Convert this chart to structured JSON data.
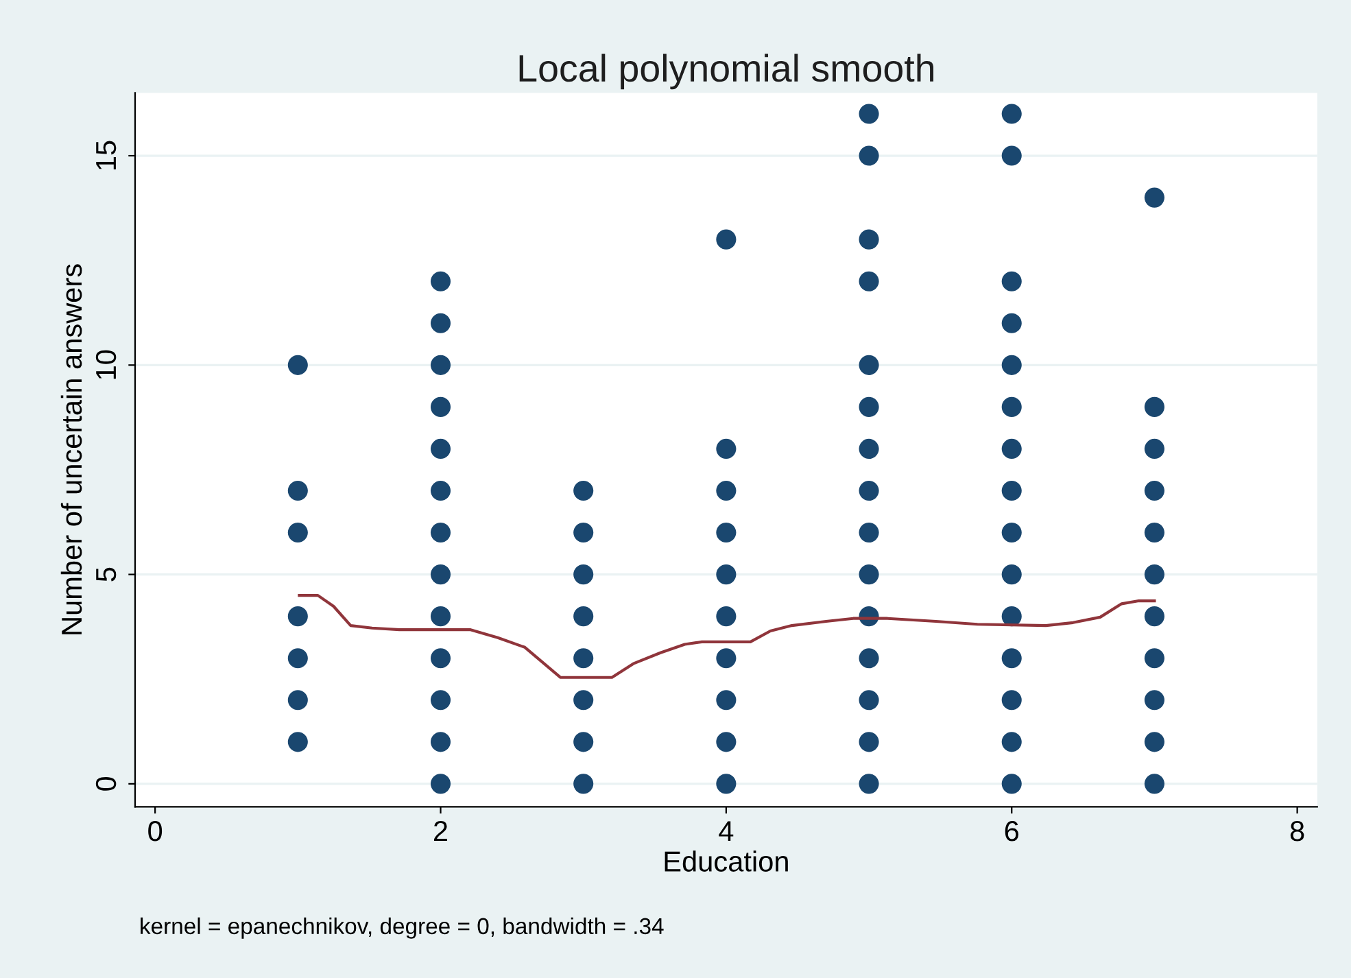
{
  "chart_data": {
    "type": "scatter",
    "title": "Local polynomial smooth",
    "xlabel": "Education",
    "ylabel": "Number of uncertain answers",
    "annotations": [
      "kernel = epanechnikov, degree = 0, bandwidth = .34"
    ],
    "xlim": [
      -0.14,
      8.14
    ],
    "ylim": [
      -0.55,
      16.5
    ],
    "xticks": [
      0,
      2,
      4,
      6,
      8
    ],
    "yticks": [
      0,
      5,
      10,
      15
    ],
    "grid": "y",
    "marker": "circle",
    "series": [
      {
        "color": "#1a476f",
        "x": [
          1,
          1,
          1,
          1,
          1,
          1,
          1,
          2,
          2,
          2,
          2,
          2,
          2,
          2,
          2,
          2,
          2,
          2,
          2,
          2,
          3,
          3,
          3,
          3,
          3,
          3,
          3,
          3,
          4,
          4,
          4,
          4,
          4,
          4,
          4,
          4,
          4,
          4,
          5,
          5,
          5,
          5,
          5,
          5,
          5,
          5,
          5,
          5,
          5,
          5,
          5,
          5,
          5,
          6,
          6,
          6,
          6,
          6,
          6,
          6,
          6,
          6,
          6,
          6,
          6,
          6,
          6,
          6,
          7,
          7,
          7,
          7,
          7,
          7,
          7,
          7,
          7,
          7,
          7
        ],
        "values": [
          1,
          2,
          3,
          4,
          6,
          7,
          10,
          0,
          1,
          2,
          3,
          4,
          5,
          6,
          7,
          8,
          9,
          10,
          11,
          12,
          0,
          1,
          2,
          3,
          4,
          5,
          6,
          7,
          0,
          1,
          2,
          3,
          4,
          5,
          6,
          7,
          8,
          13,
          0,
          1,
          2,
          3,
          4,
          5,
          6,
          7,
          8,
          9,
          10,
          12,
          13,
          15,
          16,
          0,
          1,
          2,
          3,
          4,
          5,
          6,
          7,
          8,
          9,
          10,
          11,
          12,
          15,
          16,
          0,
          1,
          2,
          3,
          4,
          5,
          6,
          7,
          8,
          9,
          14
        ]
      },
      {
        "type": "line",
        "color": "#90353b",
        "marker": "none",
        "line_style": "solid",
        "x": [
          1.01,
          1.14,
          1.25,
          1.37,
          1.52,
          1.71,
          2.21,
          2.4,
          2.59,
          2.84,
          3.2,
          3.35,
          3.54,
          3.71,
          3.83,
          4.17,
          4.31,
          4.46,
          4.7,
          4.89,
          5.13,
          5.47,
          5.76,
          6.24,
          6.43,
          6.62,
          6.77,
          6.89,
          7.0
        ],
        "values": [
          4.5,
          4.5,
          4.24,
          3.78,
          3.72,
          3.68,
          3.68,
          3.49,
          3.26,
          2.54,
          2.54,
          2.87,
          3.13,
          3.33,
          3.39,
          3.39,
          3.65,
          3.78,
          3.88,
          3.95,
          3.95,
          3.88,
          3.81,
          3.78,
          3.85,
          3.98,
          4.3,
          4.37,
          4.37
        ]
      }
    ]
  }
}
